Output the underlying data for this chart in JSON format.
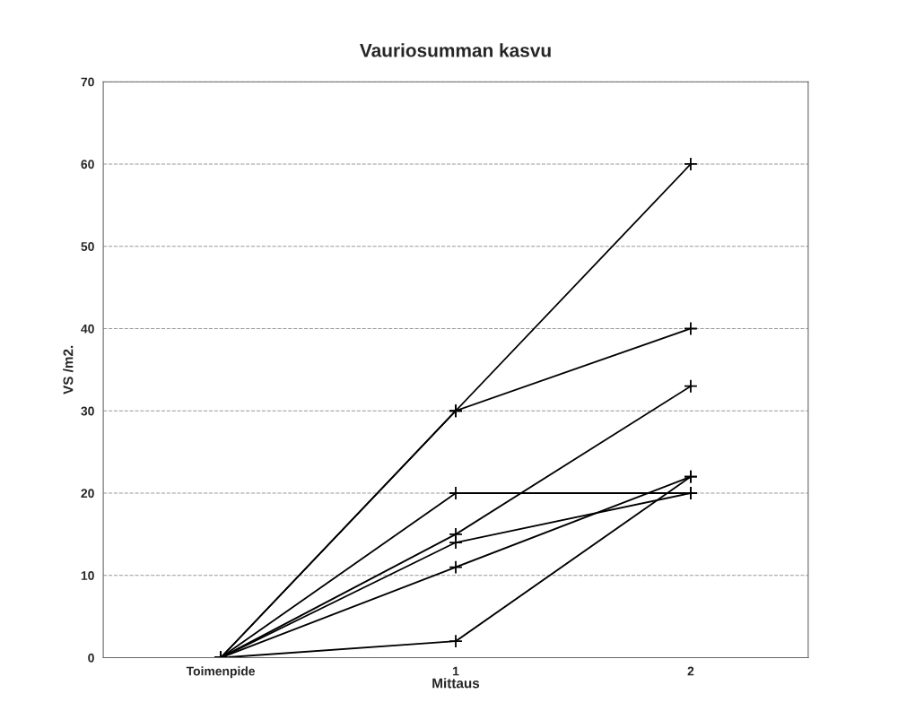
{
  "chart_data": {
    "type": "line",
    "title": "Vauriosumman kasvu",
    "xlabel": "Mittaus",
    "ylabel": "VS /m2.",
    "categories": [
      "Toimenpide",
      "1",
      "2"
    ],
    "series": [
      {
        "color": "#000000",
        "values": [
          0,
          30,
          60
        ]
      },
      {
        "color": "#000000",
        "values": [
          0,
          30,
          40
        ]
      },
      {
        "color": "#000000",
        "values": [
          0,
          20,
          20
        ]
      },
      {
        "color": "#000000",
        "values": [
          0,
          15,
          33
        ]
      },
      {
        "color": "#000000",
        "values": [
          0,
          14,
          20
        ]
      },
      {
        "color": "#000000",
        "values": [
          0,
          11,
          22
        ]
      },
      {
        "color": "#000000",
        "values": [
          0,
          2,
          22
        ]
      }
    ],
    "ylim": [
      0,
      70
    ],
    "yticks": [
      0,
      10,
      20,
      30,
      40,
      50,
      60,
      70
    ],
    "grid": "y",
    "marker": "cross",
    "line_style": "solid"
  }
}
